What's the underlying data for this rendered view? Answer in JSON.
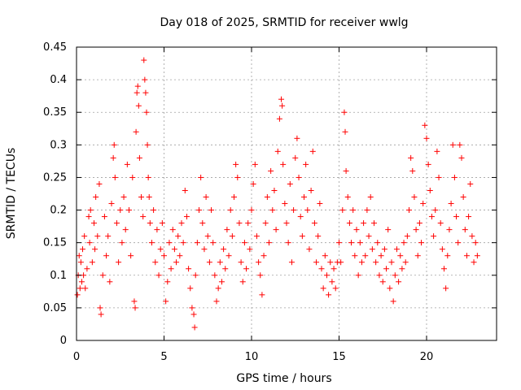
{
  "chart_data": {
    "type": "scatter",
    "title": "Day 018 of 2025, SRMTID for receiver wwlg",
    "xlabel": "GPS time / hours",
    "ylabel": "SRMTID / TECUs",
    "xlim": [
      0,
      24
    ],
    "ylim": [
      0,
      0.45
    ],
    "xticks": [
      0,
      5,
      10,
      15,
      20
    ],
    "xtick_labels": [
      "0",
      "5",
      "10",
      "15",
      "20"
    ],
    "yticks": [
      0,
      0.05,
      0.1,
      0.15,
      0.2,
      0.25,
      0.3,
      0.35,
      0.4,
      0.45
    ],
    "ytick_labels": [
      "0",
      "0.05",
      "0.1",
      "0.15",
      "0.2",
      "0.25",
      "0.3",
      "0.35",
      "0.4",
      "0.45"
    ],
    "grid": true,
    "marker": "+",
    "marker_color": "#ff0000",
    "series": [
      {
        "name": "SRMTID",
        "points": [
          [
            0.05,
            0.07
          ],
          [
            0.1,
            0.1
          ],
          [
            0.15,
            0.13
          ],
          [
            0.2,
            0.08
          ],
          [
            0.25,
            0.12
          ],
          [
            0.3,
            0.09
          ],
          [
            0.35,
            0.14
          ],
          [
            0.4,
            0.1
          ],
          [
            0.45,
            0.16
          ],
          [
            0.5,
            0.08
          ],
          [
            0.6,
            0.11
          ],
          [
            0.7,
            0.19
          ],
          [
            0.75,
            0.15
          ],
          [
            0.8,
            0.2
          ],
          [
            0.9,
            0.12
          ],
          [
            1.0,
            0.18
          ],
          [
            1.05,
            0.14
          ],
          [
            1.1,
            0.22
          ],
          [
            1.2,
            0.16
          ],
          [
            1.3,
            0.24
          ],
          [
            1.35,
            0.05
          ],
          [
            1.4,
            0.04
          ],
          [
            1.5,
            0.1
          ],
          [
            1.6,
            0.19
          ],
          [
            1.7,
            0.13
          ],
          [
            1.8,
            0.16
          ],
          [
            1.9,
            0.09
          ],
          [
            2.0,
            0.21
          ],
          [
            2.1,
            0.28
          ],
          [
            2.15,
            0.3
          ],
          [
            2.2,
            0.25
          ],
          [
            2.3,
            0.18
          ],
          [
            2.4,
            0.12
          ],
          [
            2.5,
            0.2
          ],
          [
            2.6,
            0.15
          ],
          [
            2.7,
            0.22
          ],
          [
            2.8,
            0.17
          ],
          [
            2.9,
            0.27
          ],
          [
            3.0,
            0.2
          ],
          [
            3.1,
            0.13
          ],
          [
            3.2,
            0.25
          ],
          [
            3.3,
            0.06
          ],
          [
            3.35,
            0.05
          ],
          [
            3.4,
            0.32
          ],
          [
            3.45,
            0.38
          ],
          [
            3.5,
            0.39
          ],
          [
            3.55,
            0.36
          ],
          [
            3.6,
            0.28
          ],
          [
            3.7,
            0.22
          ],
          [
            3.8,
            0.19
          ],
          [
            3.85,
            0.43
          ],
          [
            3.9,
            0.4
          ],
          [
            3.95,
            0.38
          ],
          [
            4.0,
            0.35
          ],
          [
            4.05,
            0.3
          ],
          [
            4.1,
            0.25
          ],
          [
            4.15,
            0.22
          ],
          [
            4.2,
            0.18
          ],
          [
            4.3,
            0.15
          ],
          [
            4.4,
            0.2
          ],
          [
            4.5,
            0.12
          ],
          [
            4.6,
            0.17
          ],
          [
            4.7,
            0.1
          ],
          [
            4.8,
            0.14
          ],
          [
            4.9,
            0.18
          ],
          [
            5.0,
            0.13
          ],
          [
            5.1,
            0.06
          ],
          [
            5.2,
            0.09
          ],
          [
            5.3,
            0.15
          ],
          [
            5.4,
            0.11
          ],
          [
            5.5,
            0.17
          ],
          [
            5.6,
            0.14
          ],
          [
            5.7,
            0.12
          ],
          [
            5.8,
            0.16
          ],
          [
            5.9,
            0.13
          ],
          [
            6.0,
            0.18
          ],
          [
            6.1,
            0.15
          ],
          [
            6.2,
            0.23
          ],
          [
            6.3,
            0.19
          ],
          [
            6.4,
            0.11
          ],
          [
            6.5,
            0.08
          ],
          [
            6.6,
            0.05
          ],
          [
            6.7,
            0.04
          ],
          [
            6.75,
            0.02
          ],
          [
            6.8,
            0.1
          ],
          [
            6.9,
            0.15
          ],
          [
            7.0,
            0.2
          ],
          [
            7.1,
            0.25
          ],
          [
            7.2,
            0.18
          ],
          [
            7.3,
            0.14
          ],
          [
            7.4,
            0.22
          ],
          [
            7.5,
            0.16
          ],
          [
            7.6,
            0.12
          ],
          [
            7.7,
            0.2
          ],
          [
            7.8,
            0.15
          ],
          [
            7.9,
            0.1
          ],
          [
            8.0,
            0.06
          ],
          [
            8.1,
            0.08
          ],
          [
            8.2,
            0.12
          ],
          [
            8.3,
            0.09
          ],
          [
            8.4,
            0.14
          ],
          [
            8.5,
            0.11
          ],
          [
            8.6,
            0.17
          ],
          [
            8.7,
            0.13
          ],
          [
            8.8,
            0.2
          ],
          [
            8.9,
            0.16
          ],
          [
            9.0,
            0.22
          ],
          [
            9.1,
            0.27
          ],
          [
            9.2,
            0.25
          ],
          [
            9.3,
            0.18
          ],
          [
            9.4,
            0.12
          ],
          [
            9.5,
            0.09
          ],
          [
            9.6,
            0.15
          ],
          [
            9.7,
            0.11
          ],
          [
            9.8,
            0.18
          ],
          [
            9.9,
            0.14
          ],
          [
            10.0,
            0.2
          ],
          [
            10.1,
            0.24
          ],
          [
            10.2,
            0.27
          ],
          [
            10.3,
            0.16
          ],
          [
            10.4,
            0.12
          ],
          [
            10.5,
            0.1
          ],
          [
            10.6,
            0.07
          ],
          [
            10.7,
            0.13
          ],
          [
            10.8,
            0.18
          ],
          [
            10.9,
            0.22
          ],
          [
            11.0,
            0.15
          ],
          [
            11.1,
            0.26
          ],
          [
            11.2,
            0.2
          ],
          [
            11.3,
            0.23
          ],
          [
            11.4,
            0.17
          ],
          [
            11.5,
            0.29
          ],
          [
            11.6,
            0.34
          ],
          [
            11.7,
            0.37
          ],
          [
            11.75,
            0.36
          ],
          [
            11.8,
            0.27
          ],
          [
            11.9,
            0.21
          ],
          [
            12.0,
            0.18
          ],
          [
            12.1,
            0.15
          ],
          [
            12.2,
            0.24
          ],
          [
            12.3,
            0.12
          ],
          [
            12.4,
            0.2
          ],
          [
            12.5,
            0.28
          ],
          [
            12.6,
            0.31
          ],
          [
            12.7,
            0.25
          ],
          [
            12.8,
            0.19
          ],
          [
            12.9,
            0.16
          ],
          [
            13.0,
            0.22
          ],
          [
            13.1,
            0.27
          ],
          [
            13.2,
            0.2
          ],
          [
            13.3,
            0.14
          ],
          [
            13.4,
            0.23
          ],
          [
            13.5,
            0.29
          ],
          [
            13.6,
            0.18
          ],
          [
            13.7,
            0.12
          ],
          [
            13.8,
            0.16
          ],
          [
            13.9,
            0.21
          ],
          [
            14.0,
            0.11
          ],
          [
            14.1,
            0.08
          ],
          [
            14.2,
            0.13
          ],
          [
            14.3,
            0.1
          ],
          [
            14.4,
            0.07
          ],
          [
            14.5,
            0.12
          ],
          [
            14.6,
            0.09
          ],
          [
            14.7,
            0.11
          ],
          [
            14.8,
            0.08
          ],
          [
            14.9,
            0.12
          ],
          [
            15.0,
            0.15
          ],
          [
            15.1,
            0.12
          ],
          [
            15.2,
            0.2
          ],
          [
            15.3,
            0.35
          ],
          [
            15.35,
            0.32
          ],
          [
            15.4,
            0.26
          ],
          [
            15.5,
            0.22
          ],
          [
            15.6,
            0.18
          ],
          [
            15.7,
            0.15
          ],
          [
            15.8,
            0.2
          ],
          [
            15.9,
            0.13
          ],
          [
            16.0,
            0.17
          ],
          [
            16.1,
            0.1
          ],
          [
            16.2,
            0.15
          ],
          [
            16.3,
            0.12
          ],
          [
            16.4,
            0.18
          ],
          [
            16.5,
            0.13
          ],
          [
            16.6,
            0.2
          ],
          [
            16.7,
            0.16
          ],
          [
            16.8,
            0.22
          ],
          [
            16.9,
            0.14
          ],
          [
            17.0,
            0.18
          ],
          [
            17.1,
            0.12
          ],
          [
            17.2,
            0.15
          ],
          [
            17.3,
            0.1
          ],
          [
            17.4,
            0.13
          ],
          [
            17.5,
            0.09
          ],
          [
            17.6,
            0.14
          ],
          [
            17.7,
            0.11
          ],
          [
            17.8,
            0.17
          ],
          [
            17.9,
            0.08
          ],
          [
            18.0,
            0.12
          ],
          [
            18.1,
            0.06
          ],
          [
            18.2,
            0.1
          ],
          [
            18.3,
            0.14
          ],
          [
            18.4,
            0.09
          ],
          [
            18.5,
            0.13
          ],
          [
            18.6,
            0.11
          ],
          [
            18.7,
            0.15
          ],
          [
            18.8,
            0.12
          ],
          [
            18.9,
            0.16
          ],
          [
            19.0,
            0.2
          ],
          [
            19.1,
            0.28
          ],
          [
            19.2,
            0.26
          ],
          [
            19.3,
            0.22
          ],
          [
            19.4,
            0.17
          ],
          [
            19.5,
            0.13
          ],
          [
            19.6,
            0.18
          ],
          [
            19.7,
            0.15
          ],
          [
            19.8,
            0.21
          ],
          [
            19.9,
            0.33
          ],
          [
            20.0,
            0.31
          ],
          [
            20.1,
            0.27
          ],
          [
            20.2,
            0.23
          ],
          [
            20.3,
            0.19
          ],
          [
            20.4,
            0.16
          ],
          [
            20.5,
            0.2
          ],
          [
            20.6,
            0.29
          ],
          [
            20.7,
            0.25
          ],
          [
            20.8,
            0.18
          ],
          [
            20.9,
            0.14
          ],
          [
            21.0,
            0.11
          ],
          [
            21.1,
            0.08
          ],
          [
            21.2,
            0.13
          ],
          [
            21.3,
            0.17
          ],
          [
            21.4,
            0.21
          ],
          [
            21.5,
            0.3
          ],
          [
            21.6,
            0.25
          ],
          [
            21.7,
            0.19
          ],
          [
            21.8,
            0.15
          ],
          [
            21.9,
            0.3
          ],
          [
            22.0,
            0.28
          ],
          [
            22.1,
            0.22
          ],
          [
            22.2,
            0.17
          ],
          [
            22.3,
            0.13
          ],
          [
            22.4,
            0.19
          ],
          [
            22.5,
            0.24
          ],
          [
            22.6,
            0.16
          ],
          [
            22.7,
            0.12
          ],
          [
            22.8,
            0.15
          ],
          [
            22.9,
            0.13
          ]
        ]
      }
    ]
  }
}
